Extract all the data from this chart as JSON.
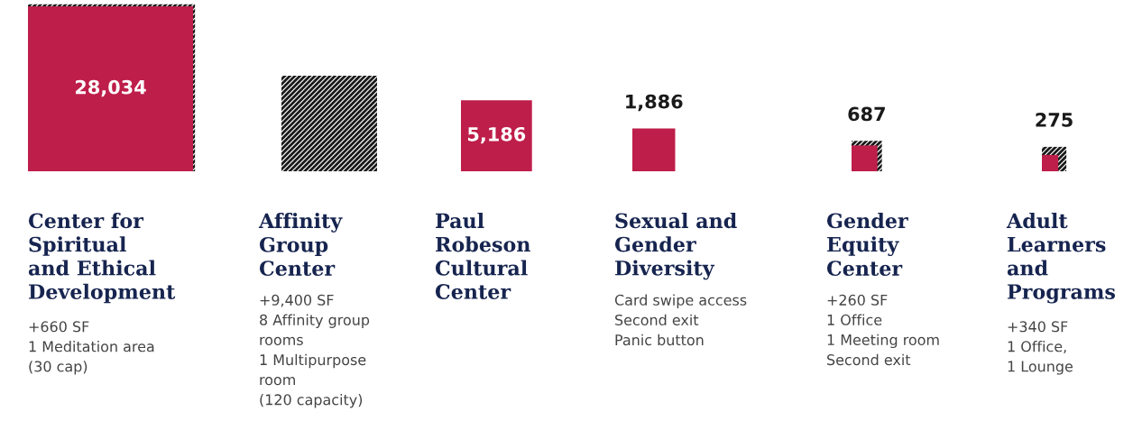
{
  "chart_data": {
    "type": "other",
    "categories": [
      "Center for\nSpiritual\nand Ethical\nDevelopment",
      "Affinity\nGroup\nCenter",
      "Paul\nRobeson\nCultural\nCenter",
      "Sexual and\nGender\nDiversity",
      "Gender\nEquity\nCenter",
      "Adult\nLearners\nand\nPrograms"
    ],
    "series": [
      {
        "color": "#be1e4a",
        "values": [
          28034,
          null,
          5186,
          1886,
          687,
          275
        ],
        "value_labels": [
          "28,034",
          null,
          "5,186",
          "1,886",
          "687",
          "275"
        ]
      },
      {
        "color": "#1a1a1a",
        "values": [
          660,
          9400,
          null,
          null,
          260,
          340
        ],
        "value_labels": [
          "+660 SF",
          "+9,400 SF",
          null,
          null,
          "+260 SF",
          "+340 SF"
        ]
      }
    ],
    "annotations": [
      {
        "text": "1 Meditation area\n(30 cap)",
        "x": "Center for\nSpiritual\nand Ethical\nDevelopment"
      },
      {
        "text": "8 Affinity group\nrooms\n1 Multipurpose\nroom\n(120 capacity)",
        "x": "Affinity\nGroup\nCenter"
      },
      {
        "text": "Card swipe access\nSecond exit\nPanic button",
        "x": "Sexual and\nGender\nDiversity"
      },
      {
        "text": "1 Office\n1 Meeting room\nSecond exit",
        "x": "Gender\nEquity\nCenter"
      },
      {
        "text": "1 Office,\n1 Lounge",
        "x": "Adult\nLearners\nand\nPrograms"
      }
    ]
  }
}
